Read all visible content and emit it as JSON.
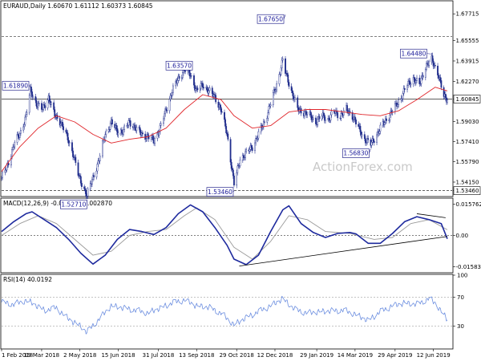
{
  "colors": {
    "price": "#1f2c8c",
    "sma": "#e0262b",
    "macd": "#1e2a9e",
    "signal": "#9a9a9a",
    "rsi": "#6d8fe0",
    "text": "#000000",
    "annot_border": "#2b2b8f",
    "watermark": "#c9c9c9"
  },
  "watermark": "ActionForex.com",
  "chart_data": [
    {
      "type": "candlestick",
      "title": "EURAUD,Daily 1.60670 1.61112 1.60373 1.60845",
      "ylim": [
        1.5305,
        1.687
      ],
      "y_ticks": [
        "1.67715",
        "1.65555",
        "1.63915",
        "1.62270",
        "1.60845",
        "1.59030",
        "1.57410",
        "1.55790",
        "1.54150",
        "1.53460"
      ],
      "last_price": "1.60845",
      "horizontal_levels": [
        {
          "label": "1.65870",
          "value": 1.6587,
          "style": "dashed"
        },
        {
          "label": "1.60845",
          "value": 1.60845,
          "style": "solid"
        },
        {
          "label": "1.53460",
          "value": 1.5346,
          "style": "dashed"
        }
      ],
      "annotations": [
        {
          "label": "1.61890",
          "date": "2018-03-06",
          "value": 1.6189
        },
        {
          "label": "1.52710",
          "date": "2018-05-10",
          "value": 1.5271
        },
        {
          "label": "1.63570",
          "date": "2018-08-30",
          "value": 1.6357
        },
        {
          "label": "1.53460",
          "date": "2018-10-26",
          "value": 1.5346
        },
        {
          "label": "1.67650",
          "date": "2018-12-24",
          "value": 1.6765
        },
        {
          "label": "1.56830",
          "date": "2019-04-01",
          "value": 1.5683
        },
        {
          "label": "1.64480",
          "date": "2019-06-10",
          "value": 1.6448
        }
      ],
      "close_path": [
        [
          "2018-02-01",
          1.545
        ],
        [
          "2018-02-08",
          1.555
        ],
        [
          "2018-02-15",
          1.572
        ],
        [
          "2018-02-22",
          1.58
        ],
        [
          "2018-03-01",
          1.595
        ],
        [
          "2018-03-06",
          1.615
        ],
        [
          "2018-03-13",
          1.605
        ],
        [
          "2018-03-20",
          1.6
        ],
        [
          "2018-03-27",
          1.61
        ],
        [
          "2018-04-03",
          1.595
        ],
        [
          "2018-04-10",
          1.59
        ],
        [
          "2018-04-17",
          1.578
        ],
        [
          "2018-04-24",
          1.565
        ],
        [
          "2018-05-01",
          1.545
        ],
        [
          "2018-05-10",
          1.531
        ],
        [
          "2018-05-17",
          1.545
        ],
        [
          "2018-05-24",
          1.56
        ],
        [
          "2018-05-31",
          1.58
        ],
        [
          "2018-06-07",
          1.59
        ],
        [
          "2018-06-14",
          1.582
        ],
        [
          "2018-06-21",
          1.583
        ],
        [
          "2018-06-28",
          1.59
        ],
        [
          "2018-07-05",
          1.585
        ],
        [
          "2018-07-12",
          1.58
        ],
        [
          "2018-07-19",
          1.578
        ],
        [
          "2018-07-26",
          1.575
        ],
        [
          "2018-08-02",
          1.585
        ],
        [
          "2018-08-09",
          1.6
        ],
        [
          "2018-08-16",
          1.615
        ],
        [
          "2018-08-23",
          1.625
        ],
        [
          "2018-08-30",
          1.632
        ],
        [
          "2018-09-06",
          1.628
        ],
        [
          "2018-09-13",
          1.615
        ],
        [
          "2018-09-20",
          1.62
        ],
        [
          "2018-09-27",
          1.615
        ],
        [
          "2018-10-04",
          1.61
        ],
        [
          "2018-10-11",
          1.6
        ],
        [
          "2018-10-18",
          1.58
        ],
        [
          "2018-10-26",
          1.54
        ],
        [
          "2018-11-02",
          1.56
        ],
        [
          "2018-11-09",
          1.565
        ],
        [
          "2018-11-16",
          1.57
        ],
        [
          "2018-11-23",
          1.58
        ],
        [
          "2018-11-30",
          1.59
        ],
        [
          "2018-12-07",
          1.605
        ],
        [
          "2018-12-14",
          1.62
        ],
        [
          "2018-12-21",
          1.64
        ],
        [
          "2018-12-24",
          1.63
        ],
        [
          "2018-12-31",
          1.615
        ],
        [
          "2019-01-07",
          1.6
        ],
        [
          "2019-01-14",
          1.598
        ],
        [
          "2019-01-21",
          1.595
        ],
        [
          "2019-01-28",
          1.59
        ],
        [
          "2019-02-04",
          1.595
        ],
        [
          "2019-02-11",
          1.592
        ],
        [
          "2019-02-18",
          1.598
        ],
        [
          "2019-02-25",
          1.595
        ],
        [
          "2019-03-04",
          1.6
        ],
        [
          "2019-03-11",
          1.595
        ],
        [
          "2019-03-18",
          1.585
        ],
        [
          "2019-03-25",
          1.576
        ],
        [
          "2019-04-01",
          1.572
        ],
        [
          "2019-04-08",
          1.58
        ],
        [
          "2019-04-15",
          1.588
        ],
        [
          "2019-04-22",
          1.595
        ],
        [
          "2019-04-29",
          1.602
        ],
        [
          "2019-05-06",
          1.61
        ],
        [
          "2019-05-13",
          1.62
        ],
        [
          "2019-05-20",
          1.625
        ],
        [
          "2019-05-27",
          1.62
        ],
        [
          "2019-06-03",
          1.635
        ],
        [
          "2019-06-10",
          1.64
        ],
        [
          "2019-06-17",
          1.63
        ],
        [
          "2019-06-24",
          1.61
        ],
        [
          "2019-06-28",
          1.6085
        ]
      ],
      "sma_path": [
        [
          "2018-02-01",
          1.55
        ],
        [
          "2018-02-22",
          1.57
        ],
        [
          "2018-03-15",
          1.585
        ],
        [
          "2018-04-05",
          1.595
        ],
        [
          "2018-04-26",
          1.59
        ],
        [
          "2018-05-17",
          1.58
        ],
        [
          "2018-06-07",
          1.573
        ],
        [
          "2018-06-28",
          1.576
        ],
        [
          "2018-07-19",
          1.578
        ],
        [
          "2018-08-09",
          1.585
        ],
        [
          "2018-08-30",
          1.6
        ],
        [
          "2018-09-20",
          1.612
        ],
        [
          "2018-10-11",
          1.608
        ],
        [
          "2018-10-26",
          1.595
        ],
        [
          "2018-11-16",
          1.585
        ],
        [
          "2018-12-07",
          1.587
        ],
        [
          "2018-12-28",
          1.598
        ],
        [
          "2019-01-18",
          1.6
        ],
        [
          "2019-02-08",
          1.6
        ],
        [
          "2019-03-01",
          1.598
        ],
        [
          "2019-03-22",
          1.596
        ],
        [
          "2019-04-12",
          1.595
        ],
        [
          "2019-05-03",
          1.599
        ],
        [
          "2019-05-24",
          1.608
        ],
        [
          "2019-06-14",
          1.618
        ],
        [
          "2019-06-28",
          1.615
        ]
      ]
    },
    {
      "type": "line",
      "title": "MACD(12,26,9) -0.001702 0.002870",
      "ylim": [
        -0.0185,
        0.0185
      ],
      "y_ticks": [
        "0.015762",
        "0.00",
        "-0.015834"
      ],
      "macd_path": [
        [
          "2018-02-01",
          0.002
        ],
        [
          "2018-02-15",
          0.007
        ],
        [
          "2018-03-01",
          0.011
        ],
        [
          "2018-03-08",
          0.012
        ],
        [
          "2018-03-22",
          0.008
        ],
        [
          "2018-04-05",
          0.004
        ],
        [
          "2018-04-19",
          -0.002
        ],
        [
          "2018-05-03",
          -0.009
        ],
        [
          "2018-05-17",
          -0.0145
        ],
        [
          "2018-05-31",
          -0.01
        ],
        [
          "2018-06-14",
          -0.002
        ],
        [
          "2018-06-28",
          0.003
        ],
        [
          "2018-07-12",
          0.002
        ],
        [
          "2018-07-26",
          0.0005
        ],
        [
          "2018-08-09",
          0.004
        ],
        [
          "2018-08-23",
          0.011
        ],
        [
          "2018-09-06",
          0.0155
        ],
        [
          "2018-09-20",
          0.012
        ],
        [
          "2018-10-04",
          0.004
        ],
        [
          "2018-10-18",
          -0.005
        ],
        [
          "2018-10-26",
          -0.012
        ],
        [
          "2018-11-09",
          -0.0148
        ],
        [
          "2018-11-23",
          -0.01
        ],
        [
          "2018-12-07",
          0.002
        ],
        [
          "2018-12-21",
          0.013
        ],
        [
          "2018-12-28",
          0.015
        ],
        [
          "2019-01-11",
          0.006
        ],
        [
          "2019-01-25",
          0.0015
        ],
        [
          "2019-02-08",
          -0.001
        ],
        [
          "2019-02-22",
          0.001
        ],
        [
          "2019-03-08",
          0.0015
        ],
        [
          "2019-03-15",
          0.0008
        ],
        [
          "2019-03-29",
          -0.004
        ],
        [
          "2019-04-12",
          -0.004
        ],
        [
          "2019-04-26",
          0.001
        ],
        [
          "2019-05-10",
          0.007
        ],
        [
          "2019-05-24",
          0.0095
        ],
        [
          "2019-06-07",
          0.008
        ],
        [
          "2019-06-21",
          0.006
        ],
        [
          "2019-06-28",
          -0.0017
        ]
      ],
      "signal_path": [
        [
          "2018-02-01",
          0.0
        ],
        [
          "2018-02-22",
          0.006
        ],
        [
          "2018-03-15",
          0.01
        ],
        [
          "2018-04-05",
          0.006
        ],
        [
          "2018-04-26",
          -0.002
        ],
        [
          "2018-05-17",
          -0.01
        ],
        [
          "2018-06-07",
          -0.008
        ],
        [
          "2018-06-28",
          0.0
        ],
        [
          "2018-07-19",
          0.002
        ],
        [
          "2018-08-09",
          0.003
        ],
        [
          "2018-08-30",
          0.01
        ],
        [
          "2018-09-13",
          0.014
        ],
        [
          "2018-10-04",
          0.008
        ],
        [
          "2018-10-26",
          -0.006
        ],
        [
          "2018-11-16",
          -0.012
        ],
        [
          "2018-12-07",
          -0.003
        ],
        [
          "2018-12-28",
          0.01
        ],
        [
          "2019-01-18",
          0.008
        ],
        [
          "2019-02-08",
          0.002
        ],
        [
          "2019-03-08",
          0.001
        ],
        [
          "2019-04-05",
          -0.002
        ],
        [
          "2019-04-26",
          -0.001
        ],
        [
          "2019-05-17",
          0.006
        ],
        [
          "2019-06-07",
          0.008
        ],
        [
          "2019-06-28",
          0.0029
        ]
      ],
      "trendlines": [
        {
          "from": [
            "2018-11-01",
            -0.0155
          ],
          "to": [
            "2019-06-28",
            -0.0005
          ]
        },
        {
          "from": [
            "2019-05-24",
            0.011
          ],
          "to": [
            "2019-06-26",
            0.009
          ]
        }
      ]
    },
    {
      "type": "line",
      "title": "RSI(14) 40.0192",
      "ylim": [
        0,
        100
      ],
      "y_ticks": [
        "100",
        "70",
        "30",
        "0"
      ],
      "levels": [
        70,
        30
      ],
      "rsi_path": [
        [
          "2018-02-01",
          63
        ],
        [
          "2018-02-15",
          60
        ],
        [
          "2018-03-01",
          65
        ],
        [
          "2018-03-08",
          62
        ],
        [
          "2018-03-22",
          52
        ],
        [
          "2018-04-05",
          55
        ],
        [
          "2018-04-19",
          40
        ],
        [
          "2018-05-03",
          30
        ],
        [
          "2018-05-10",
          22
        ],
        [
          "2018-05-24",
          40
        ],
        [
          "2018-06-07",
          58
        ],
        [
          "2018-06-21",
          55
        ],
        [
          "2018-07-05",
          52
        ],
        [
          "2018-07-19",
          48
        ],
        [
          "2018-08-02",
          55
        ],
        [
          "2018-08-16",
          62
        ],
        [
          "2018-08-30",
          66
        ],
        [
          "2018-09-13",
          58
        ],
        [
          "2018-09-27",
          56
        ],
        [
          "2018-10-11",
          48
        ],
        [
          "2018-10-26",
          32
        ],
        [
          "2018-11-09",
          42
        ],
        [
          "2018-11-23",
          50
        ],
        [
          "2018-12-07",
          58
        ],
        [
          "2018-12-21",
          68
        ],
        [
          "2019-01-04",
          53
        ],
        [
          "2019-01-18",
          48
        ],
        [
          "2019-02-01",
          50
        ],
        [
          "2019-02-15",
          51
        ],
        [
          "2019-03-01",
          52
        ],
        [
          "2019-03-15",
          46
        ],
        [
          "2019-03-29",
          38
        ],
        [
          "2019-04-12",
          50
        ],
        [
          "2019-04-26",
          58
        ],
        [
          "2019-05-10",
          62
        ],
        [
          "2019-05-24",
          60
        ],
        [
          "2019-06-07",
          68
        ],
        [
          "2019-06-14",
          62
        ],
        [
          "2019-06-21",
          50
        ],
        [
          "2019-06-28",
          40
        ]
      ]
    }
  ],
  "x_axis": {
    "start_date": "2018-02-01",
    "end_date": "2019-06-28",
    "tick_labels": [
      {
        "label": "1 Feb 2018",
        "date": "2018-02-01"
      },
      {
        "label": "19 Mar 2018",
        "date": "2018-03-19"
      },
      {
        "label": "2 May 2018",
        "date": "2018-05-02"
      },
      {
        "label": "15 Jun 2018",
        "date": "2018-06-15"
      },
      {
        "label": "31 Jul 2018",
        "date": "2018-07-31"
      },
      {
        "label": "13 Sep 2018",
        "date": "2018-09-13"
      },
      {
        "label": "29 Oct 2018",
        "date": "2018-10-29"
      },
      {
        "label": "12 Dec 2018",
        "date": "2018-12-12"
      },
      {
        "label": "29 Jan 2019",
        "date": "2019-01-29"
      },
      {
        "label": "14 Mar 2019",
        "date": "2019-03-14"
      },
      {
        "label": "29 Apr 2019",
        "date": "2019-04-29"
      },
      {
        "label": "12 Jun 2019",
        "date": "2019-06-12"
      }
    ]
  }
}
